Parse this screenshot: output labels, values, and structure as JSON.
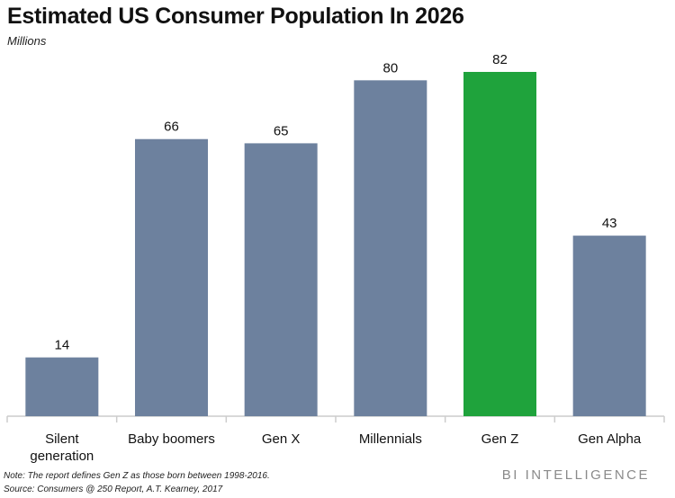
{
  "header": {
    "title": "Estimated US Consumer Population In 2026",
    "subtitle": "Millions"
  },
  "chart_data": {
    "type": "bar",
    "title": "Estimated US Consumer Population In 2026",
    "ylabel": "Millions",
    "xlabel": "",
    "categories": [
      "Silent generation",
      "Baby boomers",
      "Gen X",
      "Millennials",
      "Gen Z",
      "Gen Alpha"
    ],
    "category_lines": [
      [
        "Silent",
        "generation"
      ],
      [
        "Baby boomers"
      ],
      [
        "Gen X"
      ],
      [
        "Millennials"
      ],
      [
        "Gen Z"
      ],
      [
        "Gen Alpha"
      ]
    ],
    "values": [
      14,
      66,
      65,
      80,
      82,
      43
    ],
    "ylim": [
      0,
      82
    ],
    "grid": false,
    "legend": "none",
    "highlight_index": 4,
    "colors": {
      "bar": "#6d819e",
      "highlight": "#1fa33c",
      "axis": "#cccccc"
    }
  },
  "footer": {
    "note": "Note: The report defines Gen Z as those born between 1998-2016.",
    "source": "Source: Consumers @ 250 Report, A.T. Kearney, 2017",
    "brand": "BI INTELLIGENCE"
  }
}
